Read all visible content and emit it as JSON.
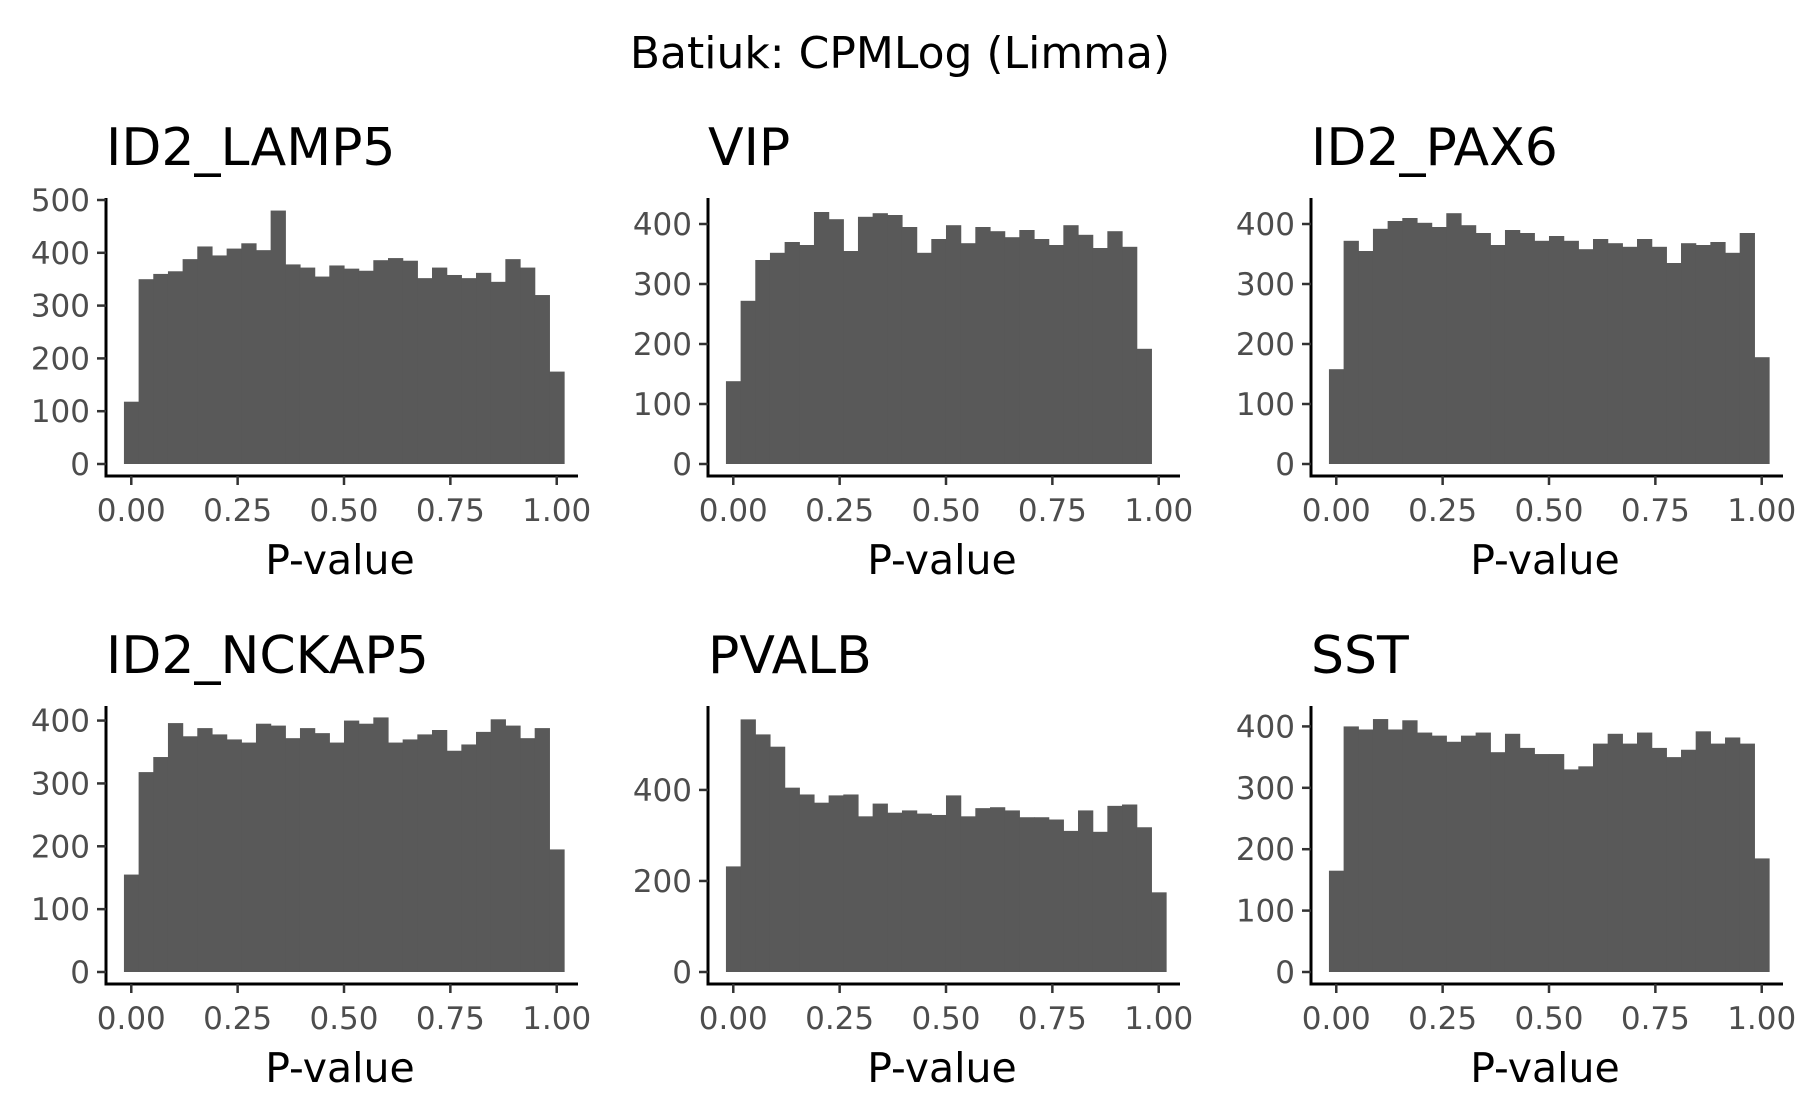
{
  "title": "Batiuk: CPMLog (Limma)",
  "colors": {
    "bar": "#595959",
    "axis": "#000000",
    "tick_text": "#4d4d4d"
  },
  "chart_data": [
    {
      "type": "bar",
      "title": "ID2_LAMP5",
      "xlabel": "P-value",
      "ylabel": "",
      "xlim": [
        -0.05,
        1.05
      ],
      "ylim": [
        0,
        500
      ],
      "x_ticks": [
        0,
        0.25,
        0.5,
        0.75,
        1
      ],
      "x_tick_labels": [
        "0.00",
        "0.25",
        "0.50",
        "0.75",
        "1.00"
      ],
      "y_ticks": [
        0,
        100,
        200,
        300,
        400,
        500
      ],
      "y_tick_labels": [
        "0",
        "100",
        "200",
        "300",
        "400",
        "500"
      ],
      "bin_width": 0.03448,
      "x_start": -0.01724,
      "values": [
        118,
        350,
        360,
        365,
        388,
        412,
        395,
        408,
        418,
        405,
        480,
        378,
        372,
        355,
        376,
        370,
        366,
        386,
        390,
        385,
        352,
        372,
        358,
        352,
        362,
        345,
        388,
        372,
        320,
        175
      ]
    },
    {
      "type": "bar",
      "title": "VIP",
      "xlabel": "P-value",
      "ylabel": "",
      "xlim": [
        -0.05,
        1.05
      ],
      "ylim": [
        0,
        440
      ],
      "x_ticks": [
        0,
        0.25,
        0.5,
        0.75,
        1
      ],
      "x_tick_labels": [
        "0.00",
        "0.25",
        "0.50",
        "0.75",
        "1.00"
      ],
      "y_ticks": [
        0,
        100,
        200,
        300,
        400
      ],
      "y_tick_labels": [
        "0",
        "100",
        "200",
        "300",
        "400"
      ],
      "bin_width": 0.03448,
      "x_start": -0.01724,
      "values": [
        138,
        272,
        340,
        352,
        370,
        365,
        420,
        408,
        355,
        412,
        418,
        415,
        395,
        352,
        375,
        398,
        368,
        395,
        388,
        378,
        390,
        375,
        365,
        398,
        382,
        360,
        388,
        362,
        192,
        0
      ]
    },
    {
      "type": "bar",
      "title": "ID2_PAX6",
      "xlabel": "P-value",
      "ylabel": "",
      "xlim": [
        -0.05,
        1.05
      ],
      "ylim": [
        0,
        440
      ],
      "x_ticks": [
        0,
        0.25,
        0.5,
        0.75,
        1
      ],
      "x_tick_labels": [
        "0.00",
        "0.25",
        "0.50",
        "0.75",
        "1.00"
      ],
      "y_ticks": [
        0,
        100,
        200,
        300,
        400
      ],
      "y_tick_labels": [
        "0",
        "100",
        "200",
        "300",
        "400"
      ],
      "bin_width": 0.03448,
      "x_start": -0.01724,
      "values": [
        158,
        372,
        355,
        392,
        405,
        410,
        402,
        395,
        418,
        398,
        385,
        365,
        390,
        385,
        372,
        380,
        372,
        358,
        375,
        368,
        362,
        375,
        362,
        335,
        368,
        365,
        370,
        352,
        385,
        178
      ]
    },
    {
      "type": "bar",
      "title": "ID2_NCKAP5",
      "xlabel": "P-value",
      "ylabel": "",
      "xlim": [
        -0.05,
        1.05
      ],
      "ylim": [
        0,
        420
      ],
      "x_ticks": [
        0,
        0.25,
        0.5,
        0.75,
        1
      ],
      "x_tick_labels": [
        "0.00",
        "0.25",
        "0.50",
        "0.75",
        "1.00"
      ],
      "y_ticks": [
        0,
        100,
        200,
        300,
        400
      ],
      "y_tick_labels": [
        "0",
        "100",
        "200",
        "300",
        "400"
      ],
      "bin_width": 0.03448,
      "x_start": -0.01724,
      "values": [
        155,
        318,
        342,
        396,
        375,
        388,
        378,
        370,
        365,
        395,
        392,
        372,
        388,
        380,
        365,
        400,
        395,
        405,
        365,
        370,
        378,
        385,
        352,
        362,
        382,
        402,
        392,
        372,
        388,
        195
      ]
    },
    {
      "type": "bar",
      "title": "PVALB",
      "xlabel": "P-value",
      "ylabel": "",
      "xlim": [
        -0.05,
        1.05
      ],
      "ylim": [
        0,
        580
      ],
      "x_ticks": [
        0,
        0.25,
        0.5,
        0.75,
        1
      ],
      "x_tick_labels": [
        "0.00",
        "0.25",
        "0.50",
        "0.75",
        "1.00"
      ],
      "y_ticks": [
        0,
        200,
        400
      ],
      "y_tick_labels": [
        "0",
        "200",
        "400"
      ],
      "bin_width": 0.03448,
      "x_start": -0.01724,
      "values": [
        232,
        555,
        522,
        495,
        405,
        390,
        372,
        388,
        390,
        342,
        370,
        350,
        355,
        348,
        345,
        388,
        342,
        360,
        362,
        355,
        340,
        340,
        335,
        310,
        355,
        308,
        365,
        368,
        318,
        175
      ]
    },
    {
      "type": "bar",
      "title": "SST",
      "xlabel": "P-value",
      "ylabel": "",
      "xlim": [
        -0.05,
        1.05
      ],
      "ylim": [
        0,
        430
      ],
      "x_ticks": [
        0,
        0.25,
        0.5,
        0.75,
        1
      ],
      "x_tick_labels": [
        "0.00",
        "0.25",
        "0.50",
        "0.75",
        "1.00"
      ],
      "y_ticks": [
        0,
        100,
        200,
        300,
        400
      ],
      "y_tick_labels": [
        "0",
        "100",
        "200",
        "300",
        "400"
      ],
      "bin_width": 0.03448,
      "x_start": -0.01724,
      "values": [
        165,
        400,
        395,
        412,
        395,
        410,
        390,
        385,
        375,
        385,
        390,
        358,
        388,
        365,
        355,
        355,
        330,
        335,
        372,
        388,
        372,
        390,
        365,
        350,
        362,
        392,
        372,
        382,
        372,
        185
      ]
    }
  ]
}
